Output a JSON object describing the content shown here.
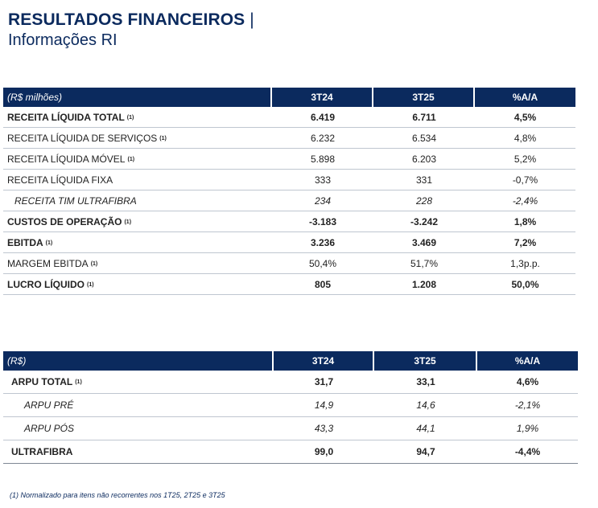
{
  "title": {
    "main": "RESULTADOS FINANCEIROS",
    "separator": "|",
    "subtitle": "Informações RI"
  },
  "table1": {
    "headers": [
      "(R$ milhões)",
      "3T24",
      "3T25",
      "%A/A"
    ],
    "rows": [
      {
        "label": "RECEITA LÍQUIDA TOTAL",
        "note": "(1)",
        "v1": "6.419",
        "v2": "6.711",
        "v3": "4,5%",
        "style": "bold"
      },
      {
        "label": "RECEITA LÍQUIDA DE SERVIÇOS",
        "note": "(1)",
        "v1": "6.232",
        "v2": "6.534",
        "v3": "4,8%",
        "style": "normal"
      },
      {
        "label": "RECEITA LÍQUIDA MÓVEL",
        "note": "(1)",
        "v1": "5.898",
        "v2": "6.203",
        "v3": "5,2%",
        "style": "normal"
      },
      {
        "label": "RECEITA LÍQUIDA FIXA",
        "note": "",
        "v1": "333",
        "v2": "331",
        "v3": "-0,7%",
        "style": "normal"
      },
      {
        "label": "RECEITA TIM ULTRAFIBRA",
        "note": "",
        "v1": "234",
        "v2": "228",
        "v3": "-2,4%",
        "style": "italic-indent"
      },
      {
        "label": "CUSTOS DE OPERAÇÃO",
        "note": "(1)",
        "v1": "-3.183",
        "v2": "-3.242",
        "v3": "1,8%",
        "style": "bold"
      },
      {
        "label": "EBITDA",
        "note": "(1)",
        "v1": "3.236",
        "v2": "3.469",
        "v3": "7,2%",
        "style": "bold"
      },
      {
        "label": "MARGEM EBITDA",
        "note": "(1)",
        "v1": "50,4%",
        "v2": "51,7%",
        "v3": "1,3p.p.",
        "style": "normal"
      },
      {
        "label": "LUCRO LÍQUIDO",
        "note": "(1)",
        "v1": "805",
        "v2": "1.208",
        "v3": "50,0%",
        "style": "bold"
      }
    ]
  },
  "table2": {
    "headers": [
      "(R$)",
      "3T24",
      "3T25",
      "%A/A"
    ],
    "rows": [
      {
        "label": "ARPU TOTAL",
        "note": "(1)",
        "v1": "31,7",
        "v2": "33,1",
        "v3": "4,6%",
        "style": "bold"
      },
      {
        "label": "ARPU PRÉ",
        "note": "",
        "v1": "14,9",
        "v2": "14,6",
        "v3": "-2,1%",
        "style": "italic-indent"
      },
      {
        "label": "ARPU PÓS",
        "note": "",
        "v1": "43,3",
        "v2": "44,1",
        "v3": "1,9%",
        "style": "italic-indent"
      },
      {
        "label": "ULTRAFIBRA",
        "note": "",
        "v1": "99,0",
        "v2": "94,7",
        "v3": "-4,4%",
        "style": "bold"
      }
    ]
  },
  "footnote": "(1) Normalizado para itens não recorrentes nos 1T25, 2T25 e 3T25"
}
